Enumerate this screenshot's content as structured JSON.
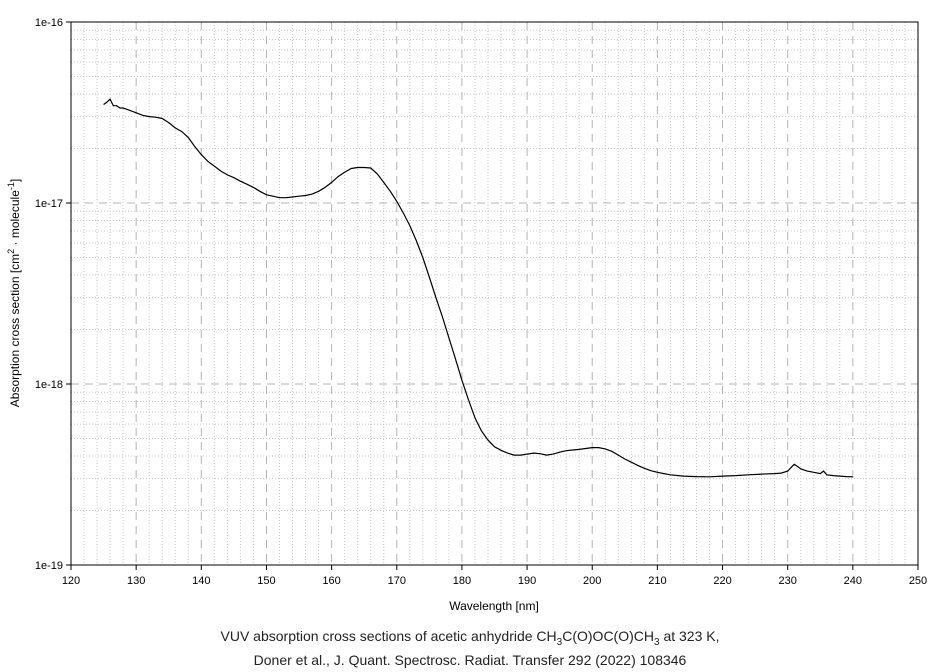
{
  "chart_data": {
    "type": "line",
    "xlabel": "Wavelength [nm]",
    "ylabel": {
      "pre": "Absorption cross section [cm",
      "sup1": "2",
      "mid": " · molecule",
      "sup2": "-1",
      "post": "]"
    },
    "xlim": [
      120,
      250
    ],
    "ylim": [
      1e-19,
      1e-16
    ],
    "yscale": "log",
    "grid": true,
    "x_ticks": [
      120,
      130,
      140,
      150,
      160,
      170,
      180,
      190,
      200,
      210,
      220,
      230,
      240,
      250
    ],
    "y_ticks": [
      "1e-19",
      "1e-18",
      "1e-17",
      "1e-16"
    ],
    "series": [
      {
        "color": "#000000",
        "points": [
          [
            125.0,
            3.5e-17
          ],
          [
            125.5,
            3.6e-17
          ],
          [
            126.0,
            3.75e-17
          ],
          [
            126.5,
            3.45e-17
          ],
          [
            127.0,
            3.45e-17
          ],
          [
            127.5,
            3.35e-17
          ],
          [
            128.0,
            3.35e-17
          ],
          [
            129.0,
            3.25e-17
          ],
          [
            130.0,
            3.15e-17
          ],
          [
            131.0,
            3.05e-17
          ],
          [
            132.0,
            3e-17
          ],
          [
            133.0,
            2.98e-17
          ],
          [
            134.0,
            2.93e-17
          ],
          [
            135.0,
            2.78e-17
          ],
          [
            136.0,
            2.6e-17
          ],
          [
            137.0,
            2.48e-17
          ],
          [
            138.0,
            2.3e-17
          ],
          [
            139.0,
            2.05e-17
          ],
          [
            140.0,
            1.85e-17
          ],
          [
            141.0,
            1.7e-17
          ],
          [
            142.0,
            1.6e-17
          ],
          [
            143.0,
            1.5e-17
          ],
          [
            144.0,
            1.43e-17
          ],
          [
            145.0,
            1.38e-17
          ],
          [
            146.0,
            1.32e-17
          ],
          [
            147.0,
            1.27e-17
          ],
          [
            148.0,
            1.22e-17
          ],
          [
            149.0,
            1.16e-17
          ],
          [
            150.0,
            1.11e-17
          ],
          [
            151.0,
            1.09e-17
          ],
          [
            152.0,
            1.07e-17
          ],
          [
            153.0,
            1.07e-17
          ],
          [
            154.0,
            1.08e-17
          ],
          [
            155.0,
            1.09e-17
          ],
          [
            156.0,
            1.1e-17
          ],
          [
            157.0,
            1.12e-17
          ],
          [
            158.0,
            1.16e-17
          ],
          [
            159.0,
            1.22e-17
          ],
          [
            160.0,
            1.3e-17
          ],
          [
            161.0,
            1.4e-17
          ],
          [
            162.0,
            1.48e-17
          ],
          [
            163.0,
            1.55e-17
          ],
          [
            164.0,
            1.57e-17
          ],
          [
            165.0,
            1.57e-17
          ],
          [
            166.0,
            1.56e-17
          ],
          [
            167.0,
            1.45e-17
          ],
          [
            168.0,
            1.3e-17
          ],
          [
            169.0,
            1.16e-17
          ],
          [
            170.0,
            1.02e-17
          ],
          [
            171.0,
            8.8e-18
          ],
          [
            172.0,
            7.5e-18
          ],
          [
            173.0,
            6.2e-18
          ],
          [
            174.0,
            5e-18
          ],
          [
            175.0,
            3.9e-18
          ],
          [
            176.0,
            3e-18
          ],
          [
            177.0,
            2.35e-18
          ],
          [
            178.0,
            1.8e-18
          ],
          [
            179.0,
            1.38e-18
          ],
          [
            180.0,
            1.05e-18
          ],
          [
            181.0,
            8.2e-19
          ],
          [
            182.0,
            6.5e-19
          ],
          [
            183.0,
            5.5e-19
          ],
          [
            184.0,
            4.9e-19
          ],
          [
            185.0,
            4.5e-19
          ],
          [
            186.0,
            4.3e-19
          ],
          [
            187.0,
            4.15e-19
          ],
          [
            188.0,
            4.05e-19
          ],
          [
            189.0,
            4.05e-19
          ],
          [
            190.0,
            4.1e-19
          ],
          [
            191.0,
            4.15e-19
          ],
          [
            192.0,
            4.12e-19
          ],
          [
            193.0,
            4.05e-19
          ],
          [
            194.0,
            4.1e-19
          ],
          [
            195.0,
            4.2e-19
          ],
          [
            196.0,
            4.28e-19
          ],
          [
            197.0,
            4.32e-19
          ],
          [
            198.0,
            4.35e-19
          ],
          [
            199.0,
            4.4e-19
          ],
          [
            200.0,
            4.45e-19
          ],
          [
            201.0,
            4.45e-19
          ],
          [
            202.0,
            4.38e-19
          ],
          [
            203.0,
            4.25e-19
          ],
          [
            204.0,
            4.05e-19
          ],
          [
            205.0,
            3.85e-19
          ],
          [
            206.0,
            3.7e-19
          ],
          [
            207.0,
            3.55e-19
          ],
          [
            208.0,
            3.42e-19
          ],
          [
            209.0,
            3.32e-19
          ],
          [
            210.0,
            3.25e-19
          ],
          [
            211.0,
            3.2e-19
          ],
          [
            212.0,
            3.15e-19
          ],
          [
            214.0,
            3.1e-19
          ],
          [
            216.0,
            3.08e-19
          ],
          [
            218.0,
            3.07e-19
          ],
          [
            220.0,
            3.1e-19
          ],
          [
            222.0,
            3.12e-19
          ],
          [
            224.0,
            3.15e-19
          ],
          [
            226.0,
            3.18e-19
          ],
          [
            228.0,
            3.2e-19
          ],
          [
            229.0,
            3.22e-19
          ],
          [
            230.0,
            3.3e-19
          ],
          [
            230.5,
            3.45e-19
          ],
          [
            231.0,
            3.6e-19
          ],
          [
            231.5,
            3.5e-19
          ],
          [
            232.0,
            3.4e-19
          ],
          [
            233.0,
            3.3e-19
          ],
          [
            234.0,
            3.25e-19
          ],
          [
            235.0,
            3.2e-19
          ],
          [
            235.5,
            3.3e-19
          ],
          [
            236.0,
            3.15e-19
          ],
          [
            237.0,
            3.12e-19
          ],
          [
            238.0,
            3.1e-19
          ],
          [
            239.0,
            3.08e-19
          ],
          [
            240.0,
            3.07e-19
          ]
        ]
      }
    ]
  },
  "caption": {
    "line1": {
      "pre": "VUV absorption cross sections of acetic anhydride CH",
      "s1": "3",
      "mid1": "C(O)OC(O)CH",
      "s2": "3",
      "post": " at 323 K,"
    },
    "line2": "Doner et al., J. Quant. Spectrosc. Radiat. Transfer 292 (2022) 108346"
  }
}
